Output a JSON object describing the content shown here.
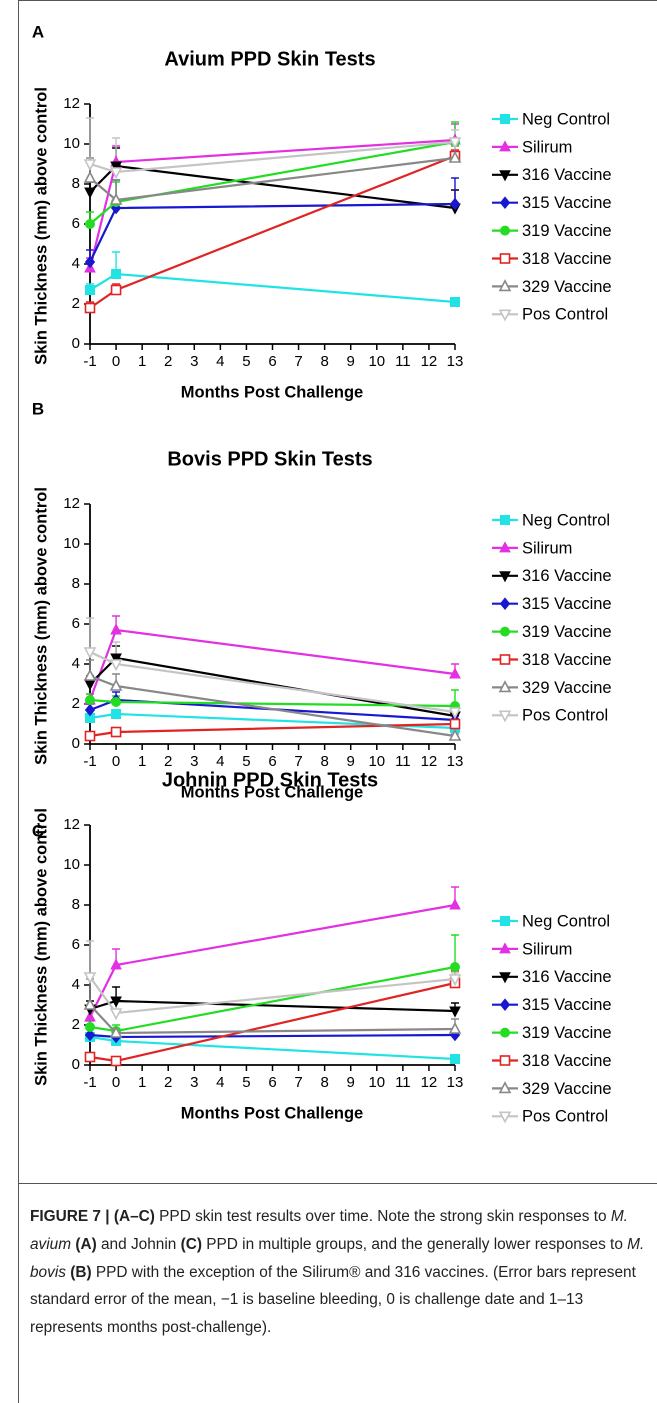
{
  "chart_data": [
    {
      "type": "line",
      "panel": "A",
      "title": "Avium PPD Skin Tests",
      "ylabel": "Skin Thickness (mm) above control",
      "xlabel": "Months Post Challenge",
      "x": [
        -1,
        0,
        13
      ],
      "xlim": [
        -1,
        13
      ],
      "xticks": [
        -1,
        0,
        1,
        2,
        3,
        4,
        5,
        6,
        7,
        8,
        9,
        10,
        11,
        12,
        13
      ],
      "ylim": [
        0,
        12
      ],
      "yticks": [
        0,
        2,
        4,
        6,
        8,
        10,
        12
      ],
      "series": [
        {
          "name": "Neg Control",
          "color": "#22e3e3",
          "marker": "filled-square",
          "values": [
            2.7,
            3.5,
            2.1
          ],
          "errors": [
            0.3,
            1.1,
            0.2
          ]
        },
        {
          "name": "Silirum",
          "color": "#e230e2",
          "marker": "filled-triangle-up",
          "values": [
            3.8,
            9.1,
            10.2
          ],
          "errors": [
            0.5,
            0.8,
            0.8
          ]
        },
        {
          "name": "316 Vaccine",
          "color": "#000000",
          "marker": "filled-triangle-down",
          "values": [
            7.6,
            8.9,
            6.8
          ],
          "errors": [
            0.5,
            0.9,
            0.9
          ]
        },
        {
          "name": "315 Vaccine",
          "color": "#1818d0",
          "marker": "filled-diamond",
          "values": [
            4.1,
            6.8,
            7.0
          ],
          "errors": [
            0.6,
            1.4,
            1.3
          ]
        },
        {
          "name": "319 Vaccine",
          "color": "#22dd22",
          "marker": "filled-circle",
          "values": [
            6.0,
            7.1,
            10.1
          ],
          "errors": [
            0.6,
            1.0,
            1.0
          ]
        },
        {
          "name": "318 Vaccine",
          "color": "#e02424",
          "marker": "open-square",
          "values": [
            1.8,
            2.7,
            9.4
          ],
          "errors": [
            0.3,
            0.3,
            0.3
          ]
        },
        {
          "name": "329 Vaccine",
          "color": "#888888",
          "marker": "open-triangle-up",
          "values": [
            8.3,
            7.2,
            9.3
          ],
          "errors": [
            1.0,
            1.0,
            0.6
          ]
        },
        {
          "name": "Pos Control",
          "color": "#c4c4c4",
          "marker": "open-triangle-down",
          "values": [
            9.0,
            8.6,
            10.1
          ],
          "errors": [
            2.3,
            1.7,
            0.6
          ]
        }
      ]
    },
    {
      "type": "line",
      "panel": "B",
      "title": "Bovis PPD Skin Tests",
      "ylabel": "Skin Thickness (mm) above control",
      "xlabel": "Months Post Challenge",
      "x": [
        -1,
        0,
        13
      ],
      "xlim": [
        -1,
        13
      ],
      "xticks": [
        -1,
        0,
        1,
        2,
        3,
        4,
        5,
        6,
        7,
        8,
        9,
        10,
        11,
        12,
        13
      ],
      "ylim": [
        0,
        12
      ],
      "yticks": [
        0,
        2,
        4,
        6,
        8,
        10,
        12
      ],
      "series": [
        {
          "name": "Neg Control",
          "color": "#22e3e3",
          "marker": "filled-square",
          "values": [
            1.3,
            1.5,
            0.8
          ],
          "errors": [
            0.2,
            0.2,
            0.1
          ]
        },
        {
          "name": "Silirum",
          "color": "#e230e2",
          "marker": "filled-triangle-up",
          "values": [
            2.2,
            5.7,
            3.5
          ],
          "errors": [
            0.3,
            0.7,
            0.5
          ]
        },
        {
          "name": "316 Vaccine",
          "color": "#000000",
          "marker": "filled-triangle-down",
          "values": [
            3.0,
            4.3,
            1.4
          ],
          "errors": [
            0.4,
            0.6,
            0.2
          ]
        },
        {
          "name": "315 Vaccine",
          "color": "#1818d0",
          "marker": "filled-diamond",
          "values": [
            1.7,
            2.2,
            1.2
          ],
          "errors": [
            0.3,
            0.4,
            0.2
          ]
        },
        {
          "name": "319 Vaccine",
          "color": "#22dd22",
          "marker": "filled-circle",
          "values": [
            2.2,
            2.1,
            1.9
          ],
          "errors": [
            0.3,
            0.3,
            0.8
          ]
        },
        {
          "name": "318 Vaccine",
          "color": "#e02424",
          "marker": "open-square",
          "values": [
            0.4,
            0.6,
            1.0
          ],
          "errors": [
            0.1,
            0.2,
            0.1
          ]
        },
        {
          "name": "329 Vaccine",
          "color": "#888888",
          "marker": "open-triangle-up",
          "values": [
            3.4,
            2.9,
            0.4
          ],
          "errors": [
            0.8,
            0.6,
            0.1
          ]
        },
        {
          "name": "Pos Control",
          "color": "#c4c4c4",
          "marker": "open-triangle-down",
          "values": [
            4.6,
            4.0,
            1.6
          ],
          "errors": [
            1.7,
            1.1,
            0.3
          ]
        }
      ]
    },
    {
      "type": "line",
      "panel": "C",
      "title": "Johnin PPD Skin Tests",
      "ylabel": "Skin Thickness (mm) above control",
      "xlabel": "Months Post Challenge",
      "x": [
        -1,
        0,
        13
      ],
      "xlim": [
        -1,
        13
      ],
      "xticks": [
        -1,
        0,
        1,
        2,
        3,
        4,
        5,
        6,
        7,
        8,
        9,
        10,
        11,
        12,
        13
      ],
      "ylim": [
        0,
        12
      ],
      "yticks": [
        0,
        2,
        4,
        6,
        8,
        10,
        12
      ],
      "series": [
        {
          "name": "Neg Control",
          "color": "#22e3e3",
          "marker": "filled-square",
          "values": [
            1.4,
            1.2,
            0.3
          ],
          "errors": [
            0.2,
            0.1,
            0.1
          ]
        },
        {
          "name": "Silirum",
          "color": "#e230e2",
          "marker": "filled-triangle-up",
          "values": [
            2.4,
            5.0,
            8.0
          ],
          "errors": [
            0.4,
            0.8,
            0.9
          ]
        },
        {
          "name": "316 Vaccine",
          "color": "#000000",
          "marker": "filled-triangle-down",
          "values": [
            2.8,
            3.2,
            2.7
          ],
          "errors": [
            0.4,
            0.7,
            0.4
          ]
        },
        {
          "name": "315 Vaccine",
          "color": "#1818d0",
          "marker": "filled-diamond",
          "values": [
            1.5,
            1.4,
            1.5
          ],
          "errors": [
            0.1,
            0.1,
            0.1
          ]
        },
        {
          "name": "319 Vaccine",
          "color": "#22dd22",
          "marker": "filled-circle",
          "values": [
            1.9,
            1.7,
            4.9
          ],
          "errors": [
            0.3,
            0.3,
            1.6
          ]
        },
        {
          "name": "318 Vaccine",
          "color": "#e02424",
          "marker": "open-square",
          "values": [
            0.4,
            0.2,
            4.1
          ],
          "errors": [
            0.1,
            0.1,
            0.6
          ]
        },
        {
          "name": "329 Vaccine",
          "color": "#888888",
          "marker": "open-triangle-up",
          "values": [
            3.0,
            1.6,
            1.8
          ],
          "errors": [
            1.3,
            0.2,
            0.5
          ]
        },
        {
          "name": "Pos Control",
          "color": "#c4c4c4",
          "marker": "open-triangle-down",
          "values": [
            4.4,
            2.6,
            4.3
          ],
          "errors": [
            1.8,
            0.7,
            0.3
          ]
        }
      ]
    }
  ],
  "caption": [
    {
      "text": "FIGURE 7 | (A–C)",
      "style": "bold"
    },
    {
      "text": " PPD skin test results over time. Note the strong skin responses to ",
      "style": "plain"
    },
    {
      "text": "M. avium",
      "style": "italic"
    },
    {
      "text": " (A)",
      "style": "bold"
    },
    {
      "text": " and Johnin ",
      "style": "plain"
    },
    {
      "text": "(C)",
      "style": "bold"
    },
    {
      "text": " PPD in multiple groups, and the generally lower responses to ",
      "style": "plain"
    },
    {
      "text": "M. bovis",
      "style": "italic"
    },
    {
      "text": " (B)",
      "style": "bold"
    },
    {
      "text": " PPD with the exception of the Silirum® and 316 vaccines. (Error bars represent standard error of the mean, −1 is baseline bleeding, 0 is challenge date and 1–13 represents months post-challenge).",
      "style": "plain"
    }
  ]
}
